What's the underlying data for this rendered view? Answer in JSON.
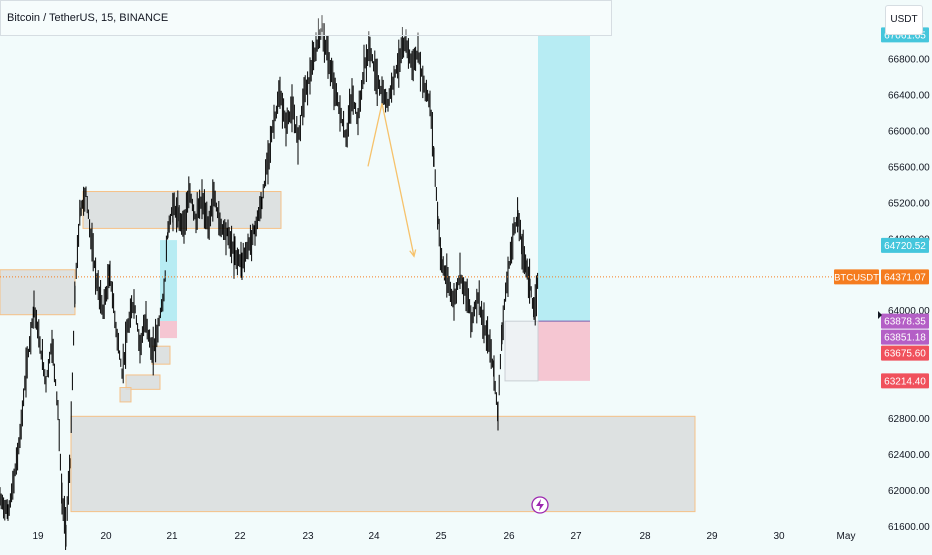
{
  "header": {
    "symbol_title": "Bitcoin / TetherUS, 15, BINANCE",
    "currency_button": "USDT"
  },
  "colors": {
    "background": "#f2fbfb",
    "candle": "#000000",
    "zone_fill": "#d9dcdc",
    "zone_border": "#f5c187",
    "target_fill": "#b7ecf3",
    "stop_fill": "#f5c6d2",
    "arrow": "#f6c26b",
    "last_price": "#f57c1f",
    "target_tag": "#45c6dc",
    "entry_tag": "#b45fc6",
    "stop_tag": "#f0515c",
    "event_icon": "#9c27b0"
  },
  "chart_data": {
    "type": "candlestick",
    "y_ticks": [
      "66800.00",
      "66400.00",
      "66000.00",
      "65600.00",
      "65200.00",
      "64800.00",
      "64000.00",
      "62800.00",
      "62400.00",
      "62000.00",
      "61600.00"
    ],
    "x_ticks": [
      "19",
      "20",
      "21",
      "22",
      "23",
      "24",
      "25",
      "26",
      "27",
      "28",
      "29",
      "30",
      "May"
    ],
    "y_range": [
      61500,
      67250
    ],
    "price_path": [
      {
        "x": 0,
        "y": 61900
      },
      {
        "x": 8,
        "y": 61750
      },
      {
        "x": 14,
        "y": 62100
      },
      {
        "x": 20,
        "y": 62600
      },
      {
        "x": 26,
        "y": 63300
      },
      {
        "x": 34,
        "y": 64050
      },
      {
        "x": 40,
        "y": 63600
      },
      {
        "x": 46,
        "y": 63200
      },
      {
        "x": 52,
        "y": 63650
      },
      {
        "x": 58,
        "y": 62900
      },
      {
        "x": 62,
        "y": 61900
      },
      {
        "x": 66,
        "y": 61550
      },
      {
        "x": 70,
        "y": 62300
      },
      {
        "x": 75,
        "y": 64200
      },
      {
        "x": 80,
        "y": 65100
      },
      {
        "x": 86,
        "y": 65300
      },
      {
        "x": 92,
        "y": 64700
      },
      {
        "x": 97,
        "y": 64300
      },
      {
        "x": 103,
        "y": 64000
      },
      {
        "x": 110,
        "y": 64400
      },
      {
        "x": 116,
        "y": 63800
      },
      {
        "x": 122,
        "y": 63300
      },
      {
        "x": 128,
        "y": 63800
      },
      {
        "x": 134,
        "y": 64100
      },
      {
        "x": 140,
        "y": 63600
      },
      {
        "x": 146,
        "y": 63900
      },
      {
        "x": 152,
        "y": 63500
      },
      {
        "x": 158,
        "y": 63800
      },
      {
        "x": 164,
        "y": 64200
      },
      {
        "x": 168,
        "y": 64900
      },
      {
        "x": 173,
        "y": 65150
      },
      {
        "x": 178,
        "y": 65050
      },
      {
        "x": 184,
        "y": 64950
      },
      {
        "x": 190,
        "y": 65300
      },
      {
        "x": 196,
        "y": 65000
      },
      {
        "x": 202,
        "y": 65250
      },
      {
        "x": 208,
        "y": 64900
      },
      {
        "x": 214,
        "y": 65300
      },
      {
        "x": 220,
        "y": 64950
      },
      {
        "x": 228,
        "y": 64850
      },
      {
        "x": 235,
        "y": 64600
      },
      {
        "x": 242,
        "y": 64550
      },
      {
        "x": 248,
        "y": 64700
      },
      {
        "x": 255,
        "y": 64900
      },
      {
        "x": 262,
        "y": 65200
      },
      {
        "x": 268,
        "y": 65700
      },
      {
        "x": 274,
        "y": 66100
      },
      {
        "x": 280,
        "y": 66400
      },
      {
        "x": 286,
        "y": 66050
      },
      {
        "x": 292,
        "y": 66250
      },
      {
        "x": 298,
        "y": 65900
      },
      {
        "x": 304,
        "y": 66400
      },
      {
        "x": 310,
        "y": 66600
      },
      {
        "x": 316,
        "y": 66900
      },
      {
        "x": 322,
        "y": 67150
      },
      {
        "x": 328,
        "y": 66800
      },
      {
        "x": 334,
        "y": 66500
      },
      {
        "x": 340,
        "y": 66200
      },
      {
        "x": 346,
        "y": 65900
      },
      {
        "x": 352,
        "y": 66400
      },
      {
        "x": 358,
        "y": 66100
      },
      {
        "x": 364,
        "y": 66700
      },
      {
        "x": 370,
        "y": 66900
      },
      {
        "x": 376,
        "y": 66600
      },
      {
        "x": 382,
        "y": 66400
      },
      {
        "x": 388,
        "y": 66300
      },
      {
        "x": 394,
        "y": 66600
      },
      {
        "x": 400,
        "y": 66800
      },
      {
        "x": 406,
        "y": 67000
      },
      {
        "x": 412,
        "y": 66700
      },
      {
        "x": 418,
        "y": 66850
      },
      {
        "x": 424,
        "y": 66500
      },
      {
        "x": 430,
        "y": 66300
      },
      {
        "x": 434,
        "y": 65700
      },
      {
        "x": 438,
        "y": 65000
      },
      {
        "x": 442,
        "y": 64500
      },
      {
        "x": 448,
        "y": 64300
      },
      {
        "x": 454,
        "y": 64100
      },
      {
        "x": 460,
        "y": 64400
      },
      {
        "x": 466,
        "y": 64200
      },
      {
        "x": 472,
        "y": 63900
      },
      {
        "x": 478,
        "y": 64150
      },
      {
        "x": 484,
        "y": 63800
      },
      {
        "x": 490,
        "y": 63600
      },
      {
        "x": 494,
        "y": 63300
      },
      {
        "x": 498,
        "y": 62850
      },
      {
        "x": 502,
        "y": 63800
      },
      {
        "x": 508,
        "y": 64400
      },
      {
        "x": 514,
        "y": 64900
      },
      {
        "x": 518,
        "y": 65050
      },
      {
        "x": 522,
        "y": 64700
      },
      {
        "x": 526,
        "y": 64500
      },
      {
        "x": 530,
        "y": 64300
      },
      {
        "x": 534,
        "y": 63950
      },
      {
        "x": 538,
        "y": 64350
      }
    ],
    "zones": [
      {
        "x0": 0,
        "x1": 75,
        "top": 64450,
        "bottom": 63950
      },
      {
        "x0": 83,
        "x1": 281,
        "top": 65320,
        "bottom": 64910
      },
      {
        "x0": 71,
        "x1": 695,
        "top": 62820,
        "bottom": 61760
      },
      {
        "x0": 126,
        "x1": 160,
        "top": 63280,
        "bottom": 63120
      },
      {
        "x0": 120,
        "x1": 131,
        "top": 63140,
        "bottom": 62980
      },
      {
        "x0": 152,
        "x1": 170,
        "top": 63600,
        "bottom": 63400
      }
    ],
    "left_long_position": {
      "x0": 160,
      "x1": 177,
      "target": 64780,
      "entry": 63880,
      "stop": 63690
    },
    "long_position": {
      "x0": 538,
      "x1": 590,
      "target": 67061.65,
      "entry": 63878.35,
      "stop": 63214.4
    },
    "flat_box": {
      "x0": 505,
      "x1": 538,
      "top": 63878,
      "bottom": 63214
    },
    "arrow_path": [
      {
        "x": 368,
        "y": 65600
      },
      {
        "x": 382,
        "y": 66300
      },
      {
        "x": 414,
        "y": 64600
      }
    ],
    "last_price": 64371.07,
    "price_tags": [
      {
        "label": "67061.65",
        "value": 67061.65,
        "kind": "target"
      },
      {
        "label": "64720.52",
        "value": 64720.52,
        "kind": "target"
      },
      {
        "label": "64371.07",
        "value": 64371.07,
        "kind": "last",
        "symbol": "BTCUSDT"
      },
      {
        "label": "63878.35",
        "value": 63878.35,
        "kind": "entry"
      },
      {
        "label": "63851.18",
        "value": 63851.18,
        "kind": "entry"
      },
      {
        "label": "63675.60",
        "value": 63675.6,
        "kind": "stop"
      },
      {
        "label": "63214.40",
        "value": 63214.4,
        "kind": "stop"
      }
    ]
  }
}
